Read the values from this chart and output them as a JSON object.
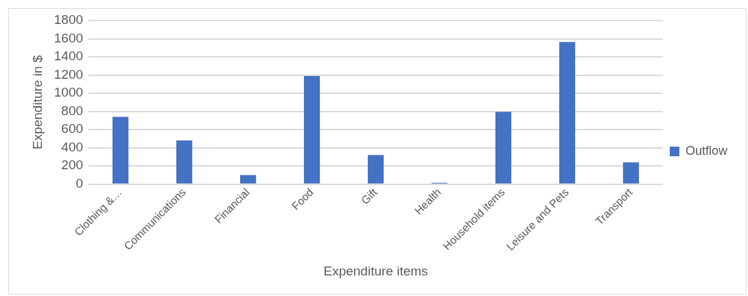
{
  "chart_data": {
    "type": "bar",
    "xlabel": "Expenditure items",
    "ylabel": "Expenditure in $",
    "categories": [
      "Clothing &…",
      "Communications",
      "Financial",
      "Food",
      "Gift",
      "Health",
      "Household items",
      "Leisure and Pets",
      "Transport"
    ],
    "series": [
      {
        "name": "Outflow",
        "color": "#4472c4",
        "values": [
          740,
          480,
          100,
          1190,
          320,
          15,
          795,
          1565,
          240
        ]
      }
    ],
    "ylim": [
      0,
      1800
    ],
    "yticks": [
      0,
      200,
      400,
      600,
      800,
      1000,
      1200,
      1400,
      1600,
      1800
    ],
    "grid": "y",
    "legend": "right"
  }
}
